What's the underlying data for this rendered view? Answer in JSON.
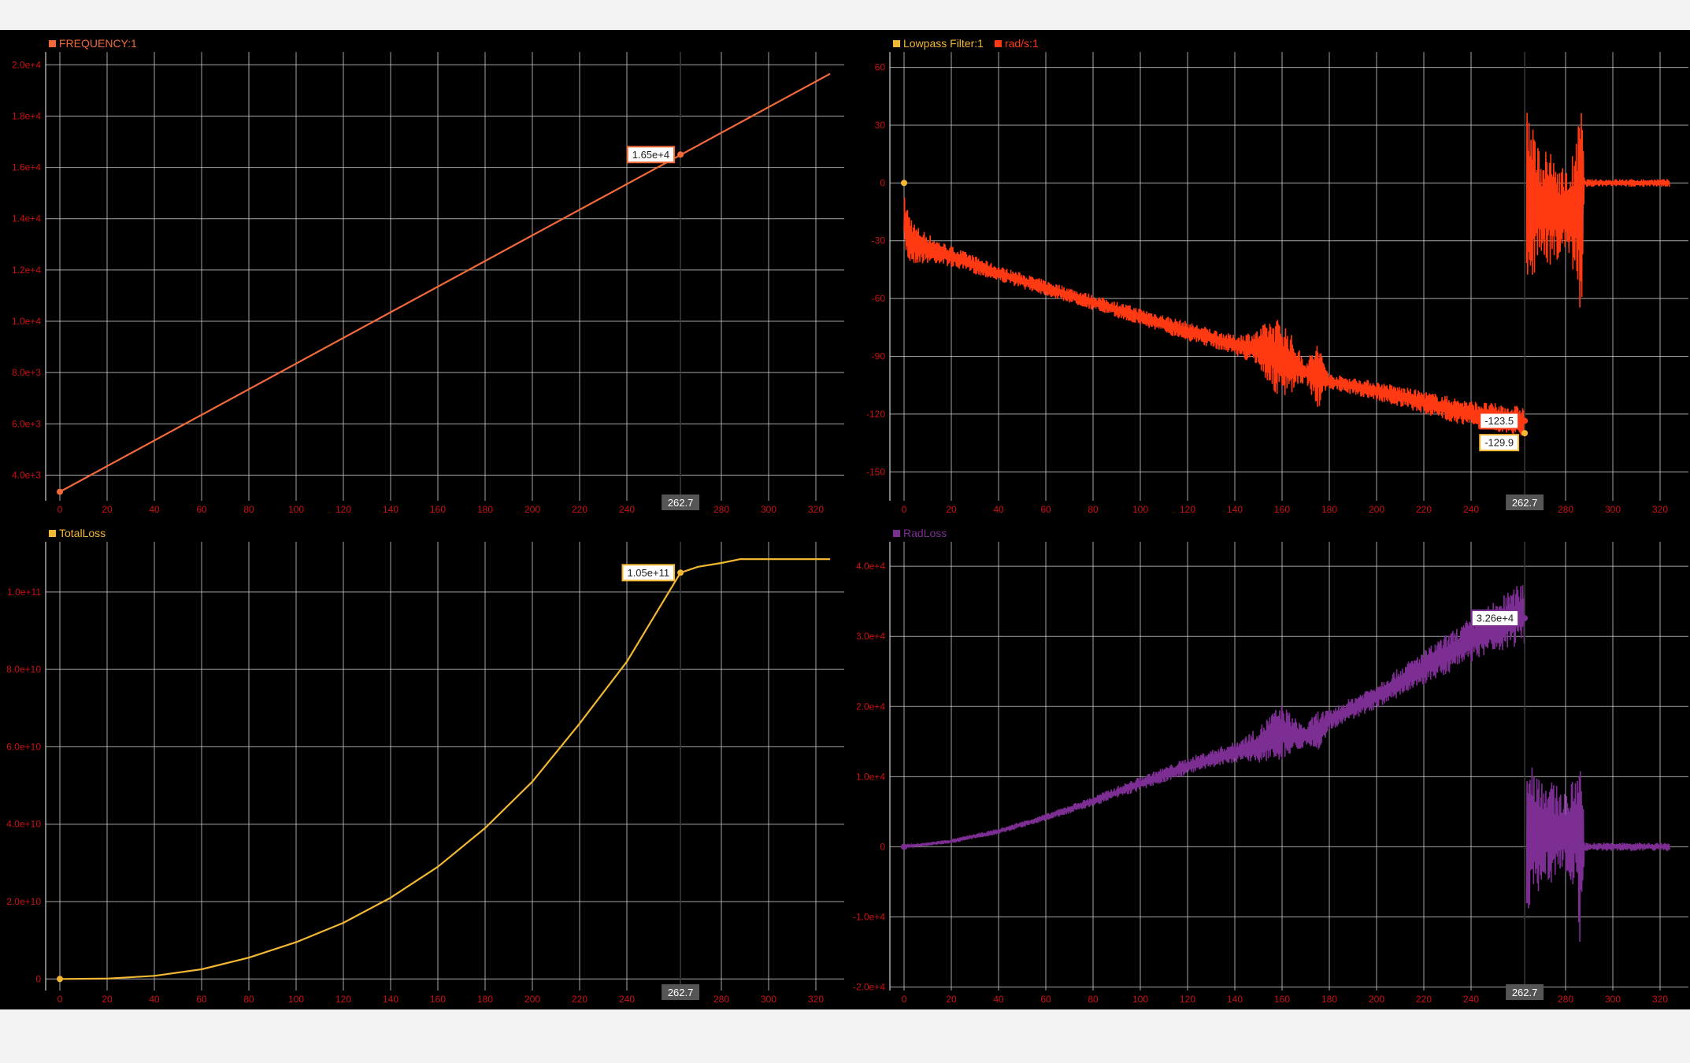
{
  "cursor_label": "262.7",
  "colors": {
    "background": "#000000",
    "grid": "#cfcfcf",
    "tick_text": "#cc1111",
    "frequency": "#f26a3a",
    "lowpass": "#f2b733",
    "radps": "#ff3a12",
    "totalloss": "#f2b733",
    "radloss": "#7d2e93",
    "cursor_label_bg": "#555555"
  },
  "chart_data": [
    {
      "id": "frequency",
      "type": "line",
      "legend": [
        {
          "name": "FREQUENCY:1",
          "color": "#f26a3a"
        }
      ],
      "xlim": [
        -6,
        332
      ],
      "ylim": [
        3000,
        20500
      ],
      "x_ticks": [
        0,
        20,
        40,
        60,
        80,
        100,
        120,
        140,
        160,
        180,
        200,
        220,
        240,
        280,
        300,
        320
      ],
      "x_tick_labels": [
        "0",
        "20",
        "40",
        "60",
        "80",
        "100",
        "120",
        "140",
        "160",
        "180",
        "200",
        "220",
        "240",
        "280",
        "300",
        "320"
      ],
      "y_ticks": [
        4000,
        6000,
        8000,
        10000,
        12000,
        14000,
        16000,
        18000,
        20000
      ],
      "y_tick_labels": [
        "4.0e+3",
        "6.0e+3",
        "8.0e+3",
        "1.0e+4",
        "1.2e+4",
        "1.4e+4",
        "1.6e+4",
        "1.8e+4",
        "2.0e+4"
      ],
      "cursor_x": 262.7,
      "series": [
        {
          "color": "#f26a3a",
          "x": [
            0,
            326
          ],
          "y": [
            3350,
            19650
          ]
        }
      ],
      "markers": [
        {
          "x": 0,
          "y": 3350,
          "color": "#f26a3a"
        },
        {
          "x": 262.7,
          "y": 16500,
          "color": "#f26a3a"
        }
      ],
      "readouts": [
        {
          "text": "1.65e+4",
          "x": 262.7,
          "y": 16500,
          "border": "#f26a3a"
        }
      ]
    },
    {
      "id": "radps",
      "type": "line",
      "legend": [
        {
          "name": "Lowpass Filter:1",
          "color": "#f2b733"
        },
        {
          "name": "rad/s:1",
          "color": "#ff3a12"
        }
      ],
      "xlim": [
        -6,
        332
      ],
      "ylim": [
        -165,
        68
      ],
      "x_ticks": [
        0,
        20,
        40,
        60,
        80,
        100,
        120,
        140,
        160,
        180,
        200,
        220,
        240,
        280,
        300,
        320
      ],
      "x_tick_labels": [
        "0",
        "20",
        "40",
        "60",
        "80",
        "100",
        "120",
        "140",
        "160",
        "180",
        "200",
        "220",
        "240",
        "280",
        "300",
        "320"
      ],
      "y_ticks": [
        -150,
        -120,
        -90,
        -60,
        -30,
        0,
        30,
        60
      ],
      "y_tick_labels": [
        "-150",
        "-120",
        "-90",
        "-60",
        "-30",
        "0",
        "30",
        "60"
      ],
      "cursor_x": 262.7,
      "series": [
        {
          "name": "rad/s:1",
          "color": "#ff3a12",
          "x": [
            0,
            2,
            5,
            15,
            40,
            80,
            120,
            140,
            150,
            155,
            160,
            165,
            170,
            175,
            180,
            200,
            220,
            240,
            262.7
          ],
          "y": [
            -20,
            -28,
            -32,
            -36,
            -47,
            -62,
            -77,
            -84,
            -86,
            -88,
            -92,
            -95,
            -98,
            -100,
            -103,
            -108,
            -114,
            -120,
            -124
          ],
          "noise": [
            14,
            14,
            10,
            6,
            4,
            4,
            5,
            5,
            10,
            18,
            22,
            14,
            5,
            18,
            4,
            5,
            6,
            7,
            8
          ]
        },
        {
          "name": "rad/s:1 tail",
          "color": "#ff3a12",
          "x": [
            263.5,
            268,
            275,
            281,
            285,
            286.5,
            288,
            300,
            320,
            324
          ],
          "y": [
            -8,
            -12,
            -14,
            -16,
            -14,
            -15,
            0,
            0,
            0,
            0
          ],
          "noise": [
            50,
            32,
            28,
            22,
            38,
            65,
            2,
            2,
            2,
            2
          ]
        }
      ],
      "markers": [
        {
          "x": 0,
          "y": 0,
          "color": "#f2b733"
        },
        {
          "x": 262.7,
          "y": -123.5,
          "color": "#ff3a12"
        },
        {
          "x": 262.7,
          "y": -129.9,
          "color": "#f2b733"
        }
      ],
      "readouts": [
        {
          "text": "-123.5",
          "x": 262.7,
          "y": -123.5,
          "border": "#ff3a12"
        },
        {
          "text": "-129.9",
          "x": 262.7,
          "y": -129.9,
          "border": "#f2b733"
        }
      ]
    },
    {
      "id": "totalloss",
      "type": "line",
      "legend": [
        {
          "name": "TotalLoss",
          "color": "#f2b733"
        }
      ],
      "xlim": [
        -6,
        332
      ],
      "ylim": [
        -3000000000.0,
        113000000000.0
      ],
      "x_ticks": [
        0,
        20,
        40,
        60,
        80,
        100,
        120,
        140,
        160,
        180,
        200,
        220,
        240,
        280,
        300,
        320
      ],
      "x_tick_labels": [
        "0",
        "20",
        "40",
        "60",
        "80",
        "100",
        "120",
        "140",
        "160",
        "180",
        "200",
        "220",
        "240",
        "280",
        "300",
        "320"
      ],
      "y_ticks": [
        0,
        20000000000.0,
        40000000000.0,
        60000000000.0,
        80000000000.0,
        100000000000.0
      ],
      "y_tick_labels": [
        "0",
        "2.0e+10",
        "4.0e+10",
        "6.0e+10",
        "8.0e+10",
        "1.0e+11"
      ],
      "cursor_x": 262.7,
      "series": [
        {
          "color": "#f2b733",
          "x": [
            0,
            20,
            40,
            60,
            80,
            100,
            120,
            140,
            160,
            180,
            200,
            220,
            240,
            262.7,
            270,
            280,
            288,
            300,
            326
          ],
          "y": [
            0,
            100000000.0,
            800000000.0,
            2500000000.0,
            5500000000.0,
            9500000000.0,
            14500000000.0,
            21000000000.0,
            29000000000.0,
            39000000000.0,
            51000000000.0,
            66000000000.0,
            82000000000.0,
            105000000000.0,
            106500000000.0,
            107500000000.0,
            108500000000.0,
            108500000000.0,
            108500000000.0
          ]
        }
      ],
      "markers": [
        {
          "x": 0,
          "y": 0,
          "color": "#f2b733"
        },
        {
          "x": 262.7,
          "y": 105000000000.0,
          "color": "#f2b733"
        }
      ],
      "readouts": [
        {
          "text": "1.05e+11",
          "x": 262.7,
          "y": 105000000000.0,
          "border": "#f2b733"
        }
      ]
    },
    {
      "id": "radloss",
      "type": "line",
      "legend": [
        {
          "name": "RadLoss",
          "color": "#7d2e93"
        }
      ],
      "xlim": [
        -6,
        332
      ],
      "ylim": [
        -20500,
        43500
      ],
      "x_ticks": [
        0,
        20,
        40,
        60,
        80,
        100,
        120,
        140,
        160,
        180,
        200,
        220,
        240,
        280,
        300,
        320
      ],
      "x_tick_labels": [
        "0",
        "20",
        "40",
        "60",
        "80",
        "100",
        "120",
        "140",
        "160",
        "180",
        "200",
        "220",
        "240",
        "280",
        "300",
        "320"
      ],
      "y_ticks": [
        -20000,
        -10000,
        0,
        10000,
        20000,
        30000,
        40000
      ],
      "y_tick_labels": [
        "-2.0e+4",
        "-1.0e+4",
        "0",
        "1.0e+4",
        "2.0e+4",
        "3.0e+4",
        "4.0e+4"
      ],
      "cursor_x": 262.7,
      "series": [
        {
          "name": "RadLoss",
          "color": "#7d2e93",
          "x": [
            0,
            20,
            40,
            60,
            80,
            100,
            120,
            140,
            150,
            155,
            160,
            165,
            170,
            175,
            180,
            200,
            220,
            240,
            262.7
          ],
          "y": [
            0,
            800,
            2200,
            4200,
            6500,
            9000,
            11500,
            13500,
            14500,
            15500,
            16500,
            16000,
            15800,
            16500,
            18000,
            21500,
            25500,
            29500,
            33500
          ],
          "noise": [
            200,
            300,
            400,
            500,
            700,
            1000,
            1200,
            1500,
            2500,
            3500,
            4000,
            2500,
            1500,
            3000,
            1500,
            1800,
            2500,
            3200,
            4500
          ]
        },
        {
          "name": "RadLoss tail",
          "color": "#7d2e93",
          "x": [
            263.5,
            268,
            275,
            281,
            285,
            286.5,
            288,
            300,
            320,
            324
          ],
          "y": [
            2000,
            2500,
            2000,
            2000,
            2000,
            0,
            0,
            0,
            0,
            0
          ],
          "noise": [
            12000,
            9000,
            7000,
            6000,
            9000,
            17000,
            600,
            600,
            600,
            600
          ]
        }
      ],
      "markers": [
        {
          "x": 0,
          "y": 0,
          "color": "#7d2e93"
        },
        {
          "x": 262.7,
          "y": 32600,
          "color": "#7d2e93"
        }
      ],
      "readouts": [
        {
          "text": "3.26e+4",
          "x": 262.7,
          "y": 32600,
          "border": "#7d2e93"
        }
      ]
    }
  ]
}
